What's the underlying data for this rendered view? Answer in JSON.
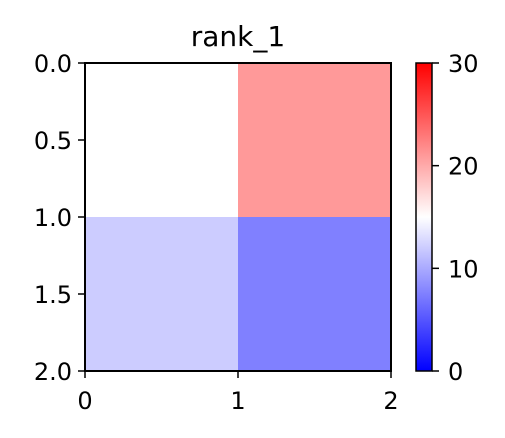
{
  "chart_data": {
    "type": "heatmap",
    "title": "rank_1",
    "xlabel": "",
    "ylabel": "",
    "x_ticks": [
      "0",
      "1",
      "2"
    ],
    "y_ticks": [
      "0.0",
      "0.5",
      "1.0",
      "1.5",
      "2.0"
    ],
    "xlim": [
      0,
      2
    ],
    "ylim": [
      0,
      2
    ],
    "y_inverted": true,
    "values": [
      [
        15,
        21
      ],
      [
        12,
        7.5
      ]
    ],
    "colorbar": {
      "min": 0,
      "max": 30,
      "ticks": [
        "0",
        "10",
        "20",
        "30"
      ],
      "colormap": "bwr",
      "colors": [
        "#0000ff",
        "#ffffff",
        "#ff0000"
      ]
    }
  }
}
